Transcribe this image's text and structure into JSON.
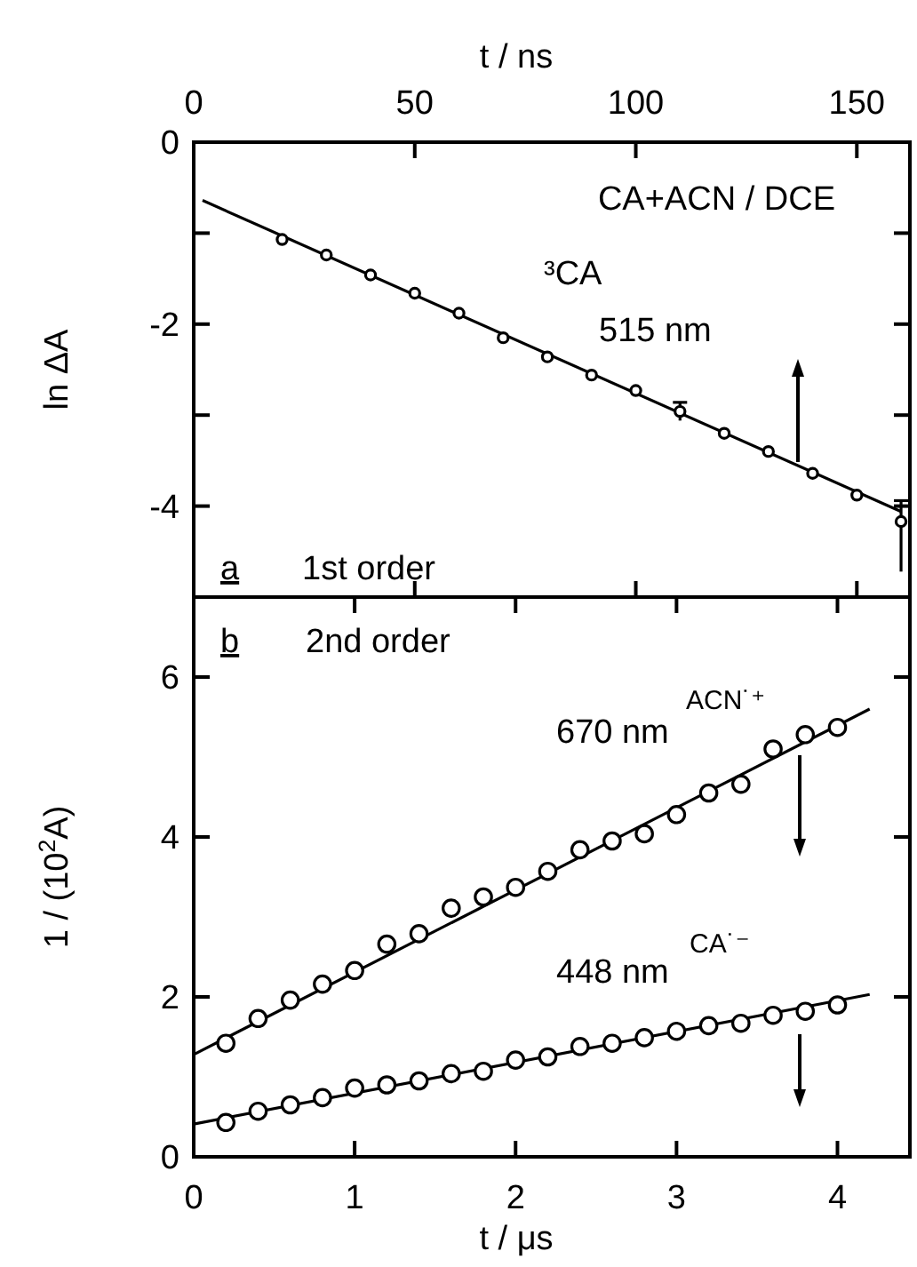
{
  "chart_data": [
    {
      "type": "scatter",
      "xlabel": "t  /  ns",
      "ylabel": "ln ΔA",
      "xlim": [
        0,
        162
      ],
      "xticks": [
        0,
        50,
        100,
        150
      ],
      "ylim": [
        -5,
        0
      ],
      "yticks": [
        0,
        {
          "value": -1,
          "label": null
        },
        -2,
        {
          "value": -3,
          "label": null
        },
        -4
      ],
      "grid": false,
      "marker": "circle",
      "annotations": [
        "CA+ACN / DCE",
        "a",
        "1st order",
        "515 nm"
      ],
      "series": [
        {
          "name": "³CA",
          "color": "#000000",
          "x": [
            20,
            30,
            40,
            50,
            60,
            70,
            80,
            90,
            100,
            110,
            120,
            130,
            140,
            150,
            160
          ],
          "values": [
            -1.07,
            -1.24,
            -1.46,
            -1.66,
            -1.88,
            -2.15,
            -2.36,
            -2.56,
            -2.73,
            -2.96,
            -3.2,
            -3.4,
            -3.64,
            -3.88,
            -4.17
          ],
          "errors": [
            null,
            null,
            null,
            null,
            null,
            null,
            null,
            null,
            null,
            0.1,
            null,
            null,
            null,
            null,
            [
              -4.72,
              -3.94
            ]
          ]
        },
        {
          "type": "line",
          "color": "#000000",
          "x": [
            2,
            160
          ],
          "values": [
            -0.64,
            -4.06
          ],
          "marker": "none",
          "line_style": "solid"
        }
      ]
    },
    {
      "type": "scatter",
      "xlabel": "t  /  μs",
      "ylabel": "1 / (10$^{2}$A)",
      "xlim": [
        0,
        4.45
      ],
      "xticks": [
        0,
        1,
        2,
        3,
        4
      ],
      "ylim": [
        0,
        7
      ],
      "yticks": [
        0,
        2,
        4,
        6
      ],
      "grid": false,
      "marker": "circle",
      "annotations": [
        "b",
        "2nd order",
        "670 nm",
        "448 nm"
      ],
      "series": [
        {
          "name": "ACN˙⁺",
          "color": "#000000",
          "x": [
            0.2,
            0.4,
            0.6,
            0.8,
            1.0,
            1.2,
            1.4,
            1.6,
            1.8,
            2.0,
            2.2,
            2.4,
            2.6,
            2.8,
            3.0,
            3.2,
            3.4,
            3.6,
            3.8,
            4.0
          ],
          "values": [
            1.42,
            1.73,
            1.96,
            2.16,
            2.33,
            2.66,
            2.79,
            3.11,
            3.25,
            3.37,
            3.57,
            3.84,
            3.95,
            4.04,
            4.28,
            4.55,
            4.66,
            5.1,
            5.28,
            5.37
          ]
        },
        {
          "type": "line",
          "color": "#000000",
          "x": [
            0,
            4.2
          ],
          "values": [
            1.28,
            5.6
          ],
          "marker": "none",
          "line_style": "solid"
        },
        {
          "name": "CA˙⁻",
          "color": "#000000",
          "x": [
            0.2,
            0.4,
            0.6,
            0.8,
            1.0,
            1.2,
            1.4,
            1.6,
            1.8,
            2.0,
            2.2,
            2.4,
            2.6,
            2.8,
            3.0,
            3.2,
            3.4,
            3.6,
            3.8,
            4.0
          ],
          "values": [
            0.43,
            0.57,
            0.65,
            0.74,
            0.86,
            0.9,
            0.95,
            1.04,
            1.07,
            1.21,
            1.25,
            1.38,
            1.42,
            1.49,
            1.57,
            1.64,
            1.67,
            1.77,
            1.82,
            1.9
          ]
        },
        {
          "type": "line",
          "color": "#000000",
          "x": [
            0,
            4.2
          ],
          "values": [
            0.41,
            2.03
          ],
          "marker": "none",
          "line_style": "solid"
        }
      ]
    }
  ]
}
